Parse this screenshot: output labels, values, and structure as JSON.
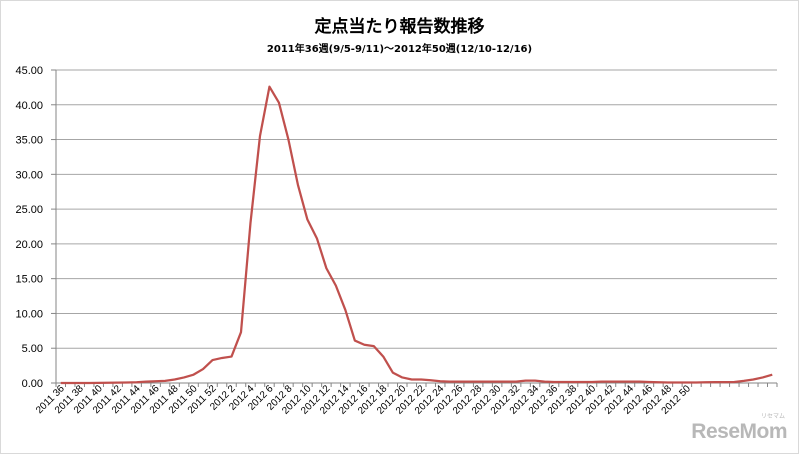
{
  "chart_data": {
    "type": "line",
    "title": "定点当たり報告数推移",
    "subtitle": "2011年36週(9/5-9/11)～2012年50週(12/10-12/16)",
    "ylim": [
      0,
      45
    ],
    "yticks": [
      "0.00",
      "5.00",
      "10.00",
      "15.00",
      "20.00",
      "25.00",
      "30.00",
      "35.00",
      "40.00",
      "45.00"
    ],
    "grid": true,
    "line_color": "#c0504d",
    "x_labels": [
      "2011 36",
      "2011 38",
      "2011 40",
      "2011 42",
      "2011 44",
      "2011 46",
      "2011 48",
      "2011 50",
      "2011 52",
      "2012 2",
      "2012 4",
      "2012 6",
      "2012 8",
      "2012 10",
      "2012 12",
      "2012 14",
      "2012 16",
      "2012 18",
      "2012 20",
      "2012 22",
      "2012 24",
      "2012 26",
      "2012 28",
      "2012 30",
      "2012 32",
      "2012 34",
      "2012 36",
      "2012 38",
      "2012 40",
      "2012 42",
      "2012 44",
      "2012 46",
      "2012 48",
      "2012 50"
    ],
    "values": [
      0.0,
      0.0,
      0.0,
      0.0,
      0.02,
      0.03,
      0.05,
      0.08,
      0.1,
      0.2,
      0.25,
      0.3,
      0.5,
      0.8,
      1.2,
      2.0,
      3.3,
      3.6,
      3.8,
      7.3,
      23.0,
      35.5,
      42.6,
      40.3,
      35.0,
      28.5,
      23.5,
      20.8,
      16.5,
      14.0,
      10.5,
      6.1,
      5.5,
      5.3,
      3.8,
      1.5,
      0.8,
      0.5,
      0.5,
      0.4,
      0.25,
      0.2,
      0.2,
      0.2,
      0.2,
      0.2,
      0.2,
      0.2,
      0.2,
      0.35,
      0.35,
      0.2,
      0.15,
      0.15,
      0.15,
      0.15,
      0.15,
      0.2,
      0.2,
      0.2,
      0.2,
      0.2,
      0.15,
      0.1,
      0.08,
      0.08,
      0.08,
      0.08,
      0.1,
      0.12,
      0.12,
      0.15,
      0.3,
      0.5,
      0.8,
      1.2
    ]
  },
  "watermark": {
    "text": "ReseMom",
    "kana": "リセマム"
  }
}
